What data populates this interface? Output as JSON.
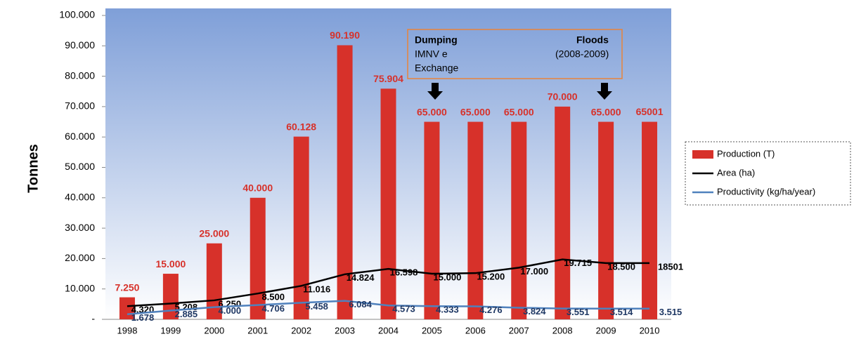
{
  "chart_data": {
    "type": "bar",
    "y_label": "Tonnes",
    "categories": [
      "1998",
      "1999",
      "2000",
      "2001",
      "2002",
      "2003",
      "2004",
      "2005",
      "2006",
      "2007",
      "2008",
      "2009",
      "2010"
    ],
    "series": [
      {
        "name": "Production (T)",
        "type": "bar",
        "color": "#d7312a",
        "values": [
          7250,
          15000,
          25000,
          40000,
          60128,
          90190,
          75904,
          65000,
          65000,
          65000,
          70000,
          65000,
          65001
        ],
        "value_labels": [
          "7.250",
          "15.000",
          "25.000",
          "40.000",
          "60.128",
          "90.190",
          "75.904",
          "65.000",
          "65.000",
          "65.000",
          "70.000",
          "65.000",
          "65001"
        ]
      },
      {
        "name": "Area (ha)",
        "type": "line",
        "color": "#000000",
        "values": [
          4320,
          5208,
          6250,
          8500,
          11016,
          14824,
          16598,
          15000,
          15200,
          17000,
          19715,
          18500,
          18501
        ],
        "value_labels": [
          "4.320",
          "5.208",
          "6.250",
          "8.500",
          "11.016",
          "14.824",
          "16.598",
          "15.000",
          "15.200",
          "17.000",
          "19.715",
          "18.500",
          "18501"
        ]
      },
      {
        "name": "Productivity (kg/ha/year)",
        "type": "line",
        "color": "#4f81bd",
        "values": [
          1678,
          2885,
          4000,
          4706,
          5458,
          6084,
          4573,
          4333,
          4276,
          3824,
          3551,
          3514,
          3515
        ],
        "value_labels": [
          "1.678",
          "2.885",
          "4.000",
          "4.706",
          "5.458",
          "6.084",
          "4.573",
          "4.333",
          "4.276",
          "3.824",
          "3.551",
          "3.514",
          "3.515"
        ]
      }
    ],
    "ylim": [
      0,
      100000
    ],
    "yticks": [
      {
        "value": 0,
        "label": "-"
      },
      {
        "value": 10000,
        "label": "10.000"
      },
      {
        "value": 20000,
        "label": "20.000"
      },
      {
        "value": 30000,
        "label": "30.000"
      },
      {
        "value": 40000,
        "label": "40.000"
      },
      {
        "value": 50000,
        "label": "50.000"
      },
      {
        "value": 60000,
        "label": "60.000"
      },
      {
        "value": 70000,
        "label": "70.000"
      },
      {
        "value": 80000,
        "label": "80.000"
      },
      {
        "value": 90000,
        "label": "90.000"
      },
      {
        "value": 100000,
        "label": "100.000"
      }
    ],
    "grid": false,
    "annotations": [
      "Dumping",
      "IMNV e",
      "Exchange",
      "Floods",
      "(2008-2009)"
    ]
  }
}
